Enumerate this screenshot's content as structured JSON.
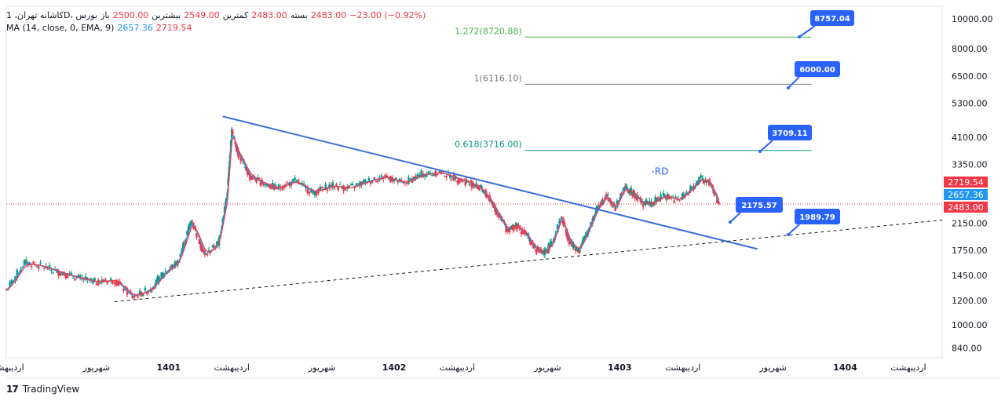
{
  "legend": {
    "symbol": "کاشانه تهران، 1D، بورس",
    "open_label": "باز",
    "open": "2500.00",
    "high_label": "بیشترین",
    "high": "2549.00",
    "low_label": "کمترین",
    "low": "2483.00",
    "close_label": "بسته",
    "close": "2483.00",
    "change": "−23.00 (−0.92%)",
    "ma_label": "MA (14, close, 0, EMA, 9)",
    "ma_value": "2657.36",
    "ema_value": "2719.54"
  },
  "brand": {
    "name": "TradingView",
    "logo": "17"
  },
  "chart_data": {
    "type": "line",
    "title": "",
    "y_scale": "log",
    "ylim": [
      780,
      11000
    ],
    "y_ticks": [
      10000,
      8000,
      6500,
      5300,
      4100,
      3350,
      2150,
      1750,
      1450,
      1200,
      1000,
      840
    ],
    "y_tick_labels": [
      "10000.00",
      "8000.00",
      "6500.00",
      "5300.00",
      "4100.00",
      "3350.00",
      "2150.00",
      "1750.00",
      "1450.00",
      "1200.00",
      "1000.00",
      "840.00"
    ],
    "x_ticks": [
      "اردیبهشت",
      "شهریور",
      "1401",
      "اردیبهشت",
      "شهریور",
      "1402",
      "اردیبهشت",
      "شهریور",
      "1403",
      "اردیبهشت",
      "شهریور",
      "1404",
      "اردیبهشت"
    ],
    "x_tick_bold": [
      false,
      false,
      true,
      false,
      false,
      true,
      false,
      false,
      true,
      false,
      false,
      true,
      false
    ],
    "x_tick_t": [
      0.0,
      0.4,
      0.72,
      1.0,
      1.4,
      1.72,
      2.0,
      2.4,
      2.72,
      3.0,
      3.4,
      3.72,
      4.0
    ],
    "price_series": {
      "name": "close",
      "t": [
        0.0,
        0.08,
        0.16,
        0.24,
        0.32,
        0.4,
        0.48,
        0.56,
        0.64,
        0.7,
        0.76,
        0.82,
        0.88,
        0.94,
        0.98,
        1.0,
        1.03,
        1.08,
        1.14,
        1.2,
        1.28,
        1.36,
        1.44,
        1.52,
        1.6,
        1.68,
        1.76,
        1.84,
        1.92,
        2.0,
        2.06,
        2.1,
        2.14,
        2.18,
        2.22,
        2.26,
        2.3,
        2.34,
        2.38,
        2.42,
        2.46,
        2.5,
        2.54,
        2.58,
        2.62,
        2.66,
        2.7,
        2.74,
        2.78,
        2.82,
        2.86,
        2.92,
        2.98,
        3.04,
        3.08,
        3.12,
        3.16
      ],
      "close": [
        1300,
        1600,
        1550,
        1480,
        1420,
        1380,
        1400,
        1230,
        1310,
        1480,
        1600,
        2200,
        1680,
        1850,
        2700,
        4300,
        3600,
        3050,
        2900,
        2800,
        2950,
        2700,
        2850,
        2800,
        2950,
        3050,
        2900,
        3100,
        3150,
        3000,
        2900,
        2800,
        2600,
        2300,
        2050,
        2100,
        2000,
        1800,
        1700,
        1850,
        2250,
        1850,
        1750,
        2050,
        2400,
        2650,
        2400,
        2800,
        2700,
        2500,
        2500,
        2650,
        2550,
        2800,
        3000,
        2900,
        2483
      ]
    },
    "series": [
      {
        "name": "MA",
        "value": 2657.36,
        "color": "#2196f3"
      },
      {
        "name": "EMA",
        "value": 2719.54,
        "color": "#f23645"
      }
    ],
    "fib_levels": [
      {
        "label": "1.272(8720.88)",
        "value": 8720.88,
        "color": "#4caf50"
      },
      {
        "label": "1(6116.10)",
        "value": 6116.1,
        "color": "#787b86"
      },
      {
        "label": "0.618(3716.00)",
        "value": 3716.0,
        "color": "#089981"
      }
    ],
    "callouts": [
      "8757.04",
      "6000.00",
      "3709.11",
      "2175.57",
      "1989.79"
    ],
    "annotation": "RD",
    "price_labels": [
      {
        "value": 2719.54,
        "text": "2719.54",
        "color": "#f23645"
      },
      {
        "value": 2657.36,
        "text": "2657.36",
        "color": "#2196f3"
      },
      {
        "value": 2483.0,
        "text": "2483.00",
        "color": "#f23645"
      }
    ],
    "colors": {
      "up": "#089981",
      "down": "#f23645",
      "trendline": "#3b6fd8",
      "callout": "#2962ff",
      "grid": "#f0f3fa"
    }
  }
}
